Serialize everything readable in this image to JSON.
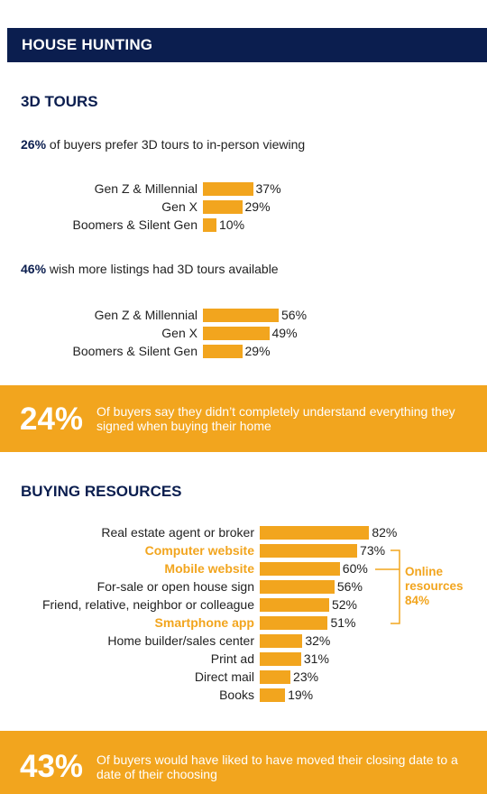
{
  "header": {
    "title": "HOUSE HUNTING"
  },
  "tours": {
    "title": "3D TOURS",
    "stat1": {
      "pct": "26%",
      "text": " of buyers prefer 3D tours to in-person viewing"
    },
    "stat2": {
      "pct": "46%",
      "text": " wish more listings had 3D tours available"
    }
  },
  "callout1": {
    "pct": "24%",
    "text": "Of buyers say they didn’t completely understand everything they signed when buying their home"
  },
  "resources": {
    "title": "BUYING RESOURCES"
  },
  "bracket": {
    "label": "Online resources 84%"
  },
  "callout2": {
    "pct": "43%",
    "text": "Of buyers would have liked to have moved their closing date to a date of their choosing"
  },
  "colors": {
    "navy": "#0b1e4f",
    "accent": "#f2a51e"
  },
  "chart_data": [
    {
      "type": "bar",
      "orientation": "horizontal",
      "categories": [
        "Gen Z & Millennial",
        "Gen X",
        "Boomers & Silent Gen"
      ],
      "values": [
        37,
        29,
        10
      ],
      "value_labels": [
        "37%",
        "29%",
        "10%"
      ]
    },
    {
      "type": "bar",
      "orientation": "horizontal",
      "categories": [
        "Gen Z & Millennial",
        "Gen X",
        "Boomers & Silent Gen"
      ],
      "values": [
        56,
        49,
        29
      ],
      "value_labels": [
        "56%",
        "49%",
        "29%"
      ]
    },
    {
      "type": "bar",
      "orientation": "horizontal",
      "categories": [
        "Real estate agent or broker",
        "Computer website",
        "Mobile website",
        "For-sale or open house sign",
        "Friend, relative, neighbor or colleague",
        "Smartphone app",
        "Home builder/sales center",
        "Print ad",
        "Direct mail",
        "Books"
      ],
      "values": [
        82,
        73,
        60,
        56,
        52,
        51,
        32,
        31,
        23,
        19
      ],
      "value_labels": [
        "82%",
        "73%",
        "60%",
        "56%",
        "52%",
        "51%",
        "32%",
        "31%",
        "23%",
        "19%"
      ],
      "highlighted": [
        "Computer website",
        "Mobile website",
        "Smartphone app"
      ]
    }
  ]
}
